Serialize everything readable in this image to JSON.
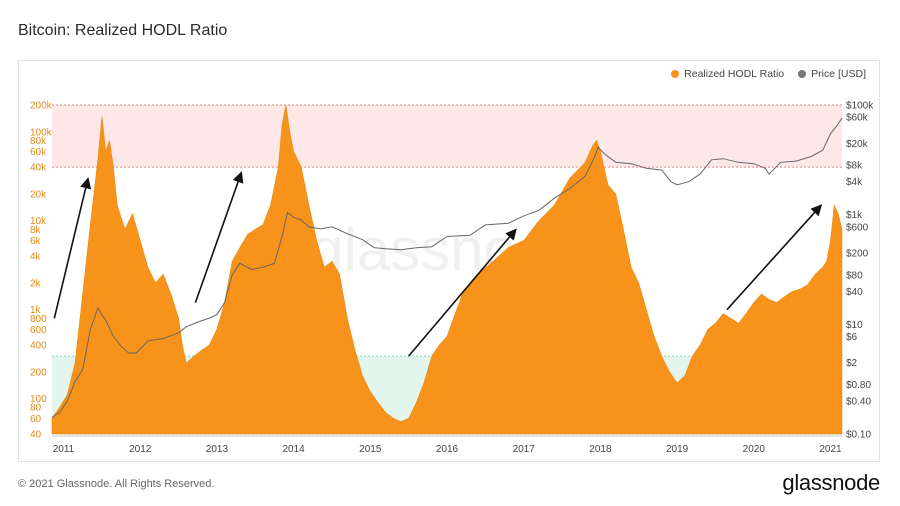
{
  "title": "Bitcoin: Realized HODL Ratio",
  "footer": "© 2021 Glassnode. All Rights Reserved.",
  "brand": "glassnode",
  "watermark": "glassnode",
  "chart_data": {
    "type": "area",
    "legend_placement": "top-right",
    "grid": false,
    "series": [
      {
        "name": "Realized HODL Ratio",
        "kind": "area",
        "axis": "left",
        "color": "#f7931a",
        "x": [
          2010.85,
          2010.95,
          2011.05,
          2011.15,
          2011.25,
          2011.35,
          2011.45,
          2011.5,
          2011.55,
          2011.6,
          2011.65,
          2011.7,
          2011.8,
          2011.9,
          2012.0,
          2012.1,
          2012.2,
          2012.3,
          2012.4,
          2012.5,
          2012.55,
          2012.6,
          2012.7,
          2012.8,
          2012.9,
          2013.0,
          2013.1,
          2013.2,
          2013.3,
          2013.4,
          2013.5,
          2013.6,
          2013.7,
          2013.8,
          2013.85,
          2013.9,
          2013.95,
          2014.0,
          2014.1,
          2014.2,
          2014.3,
          2014.4,
          2014.5,
          2014.6,
          2014.7,
          2014.8,
          2014.9,
          2015.0,
          2015.1,
          2015.2,
          2015.3,
          2015.4,
          2015.5,
          2015.6,
          2015.7,
          2015.8,
          2015.9,
          2016.0,
          2016.2,
          2016.4,
          2016.6,
          2016.8,
          2017.0,
          2017.2,
          2017.4,
          2017.6,
          2017.8,
          2017.9,
          2017.95,
          2018.0,
          2018.1,
          2018.2,
          2018.3,
          2018.4,
          2018.5,
          2018.6,
          2018.7,
          2018.8,
          2018.9,
          2019.0,
          2019.1,
          2019.2,
          2019.3,
          2019.4,
          2019.5,
          2019.6,
          2019.7,
          2019.8,
          2019.9,
          2020.0,
          2020.1,
          2020.2,
          2020.3,
          2020.4,
          2020.5,
          2020.6,
          2020.7,
          2020.8,
          2020.9,
          2020.95,
          2021.0,
          2021.05,
          2021.1,
          2021.15
        ],
        "values": [
          60,
          80,
          110,
          250,
          1500,
          9000,
          50000,
          150000,
          60000,
          80000,
          40000,
          15000,
          8000,
          12000,
          6000,
          3000,
          2000,
          2500,
          1500,
          800,
          400,
          250,
          300,
          350,
          400,
          600,
          1200,
          3500,
          5000,
          7000,
          8000,
          9000,
          15000,
          40000,
          120000,
          200000,
          100000,
          60000,
          40000,
          15000,
          6000,
          3000,
          3500,
          2500,
          800,
          350,
          180,
          120,
          90,
          70,
          60,
          55,
          60,
          90,
          150,
          300,
          400,
          500,
          1500,
          2500,
          3500,
          5000,
          6000,
          10000,
          15000,
          30000,
          45000,
          70000,
          80000,
          60000,
          25000,
          20000,
          8000,
          3000,
          2000,
          1000,
          500,
          300,
          200,
          150,
          180,
          300,
          400,
          600,
          700,
          900,
          800,
          700,
          900,
          1200,
          1500,
          1300,
          1200,
          1400,
          1600,
          1700,
          1900,
          2500,
          3000,
          3500,
          6000,
          15000,
          12000,
          8000
        ]
      },
      {
        "name": "Price [USD]",
        "kind": "line",
        "axis": "right",
        "color": "#666666",
        "x": [
          2010.85,
          2010.95,
          2011.05,
          2011.15,
          2011.25,
          2011.35,
          2011.45,
          2011.5,
          2011.55,
          2011.65,
          2011.75,
          2011.85,
          2011.95,
          2012.1,
          2012.3,
          2012.5,
          2012.6,
          2012.75,
          2012.9,
          2013.0,
          2013.1,
          2013.2,
          2013.3,
          2013.45,
          2013.6,
          2013.75,
          2013.85,
          2013.92,
          2014.0,
          2014.1,
          2014.2,
          2014.35,
          2014.5,
          2014.7,
          2014.9,
          2015.05,
          2015.2,
          2015.4,
          2015.6,
          2015.8,
          2016.0,
          2016.3,
          2016.5,
          2016.8,
          2017.0,
          2017.2,
          2017.4,
          2017.6,
          2017.8,
          2017.92,
          2017.97,
          2018.05,
          2018.2,
          2018.4,
          2018.6,
          2018.8,
          2018.92,
          2019.0,
          2019.15,
          2019.3,
          2019.45,
          2019.6,
          2019.8,
          2020.0,
          2020.15,
          2020.2,
          2020.35,
          2020.55,
          2020.75,
          2020.9,
          2021.0,
          2021.1,
          2021.15
        ],
        "values": [
          0.2,
          0.25,
          0.4,
          0.9,
          1.5,
          8,
          20,
          15,
          12,
          6,
          4,
          3,
          3,
          5,
          5.5,
          7,
          9,
          11,
          13,
          15,
          25,
          80,
          130,
          100,
          110,
          130,
          400,
          1100,
          900,
          800,
          600,
          550,
          600,
          450,
          350,
          250,
          240,
          230,
          250,
          260,
          400,
          420,
          650,
          700,
          950,
          1200,
          2000,
          3000,
          5000,
          11000,
          17000,
          13000,
          9000,
          8500,
          7000,
          6500,
          4000,
          3500,
          4000,
          5500,
          10000,
          10500,
          9000,
          8500,
          7000,
          5500,
          9000,
          9500,
          11500,
          15000,
          30000,
          45000,
          58000
        ]
      }
    ],
    "y_left": {
      "scale": "log",
      "range": [
        40,
        200000
      ],
      "ticks": [
        {
          "v": 200000,
          "l": "200k"
        },
        {
          "v": 100000,
          "l": "100k"
        },
        {
          "v": 80000,
          "l": "80k"
        },
        {
          "v": 60000,
          "l": "60k"
        },
        {
          "v": 40000,
          "l": "40k"
        },
        {
          "v": 20000,
          "l": "20k"
        },
        {
          "v": 10000,
          "l": "10k"
        },
        {
          "v": 8000,
          "l": "8k"
        },
        {
          "v": 6000,
          "l": "6k"
        },
        {
          "v": 4000,
          "l": "4k"
        },
        {
          "v": 2000,
          "l": "2k"
        },
        {
          "v": 1000,
          "l": "1k"
        },
        {
          "v": 800,
          "l": "800"
        },
        {
          "v": 600,
          "l": "600"
        },
        {
          "v": 400,
          "l": "400"
        },
        {
          "v": 200,
          "l": "200"
        },
        {
          "v": 100,
          "l": "100"
        },
        {
          "v": 80,
          "l": "80"
        },
        {
          "v": 60,
          "l": "60"
        },
        {
          "v": 40,
          "l": "40"
        }
      ]
    },
    "y_right": {
      "scale": "log",
      "range": [
        0.1,
        100000
      ],
      "ticks": [
        {
          "v": 100000,
          "l": "$100k"
        },
        {
          "v": 60000,
          "l": "$60k"
        },
        {
          "v": 20000,
          "l": "$20k"
        },
        {
          "v": 8000,
          "l": "$8k"
        },
        {
          "v": 4000,
          "l": "$4k"
        },
        {
          "v": 1000,
          "l": "$1k"
        },
        {
          "v": 600,
          "l": "$600"
        },
        {
          "v": 200,
          "l": "$200"
        },
        {
          "v": 80,
          "l": "$80"
        },
        {
          "v": 40,
          "l": "$40"
        },
        {
          "v": 10,
          "l": "$10"
        },
        {
          "v": 6,
          "l": "$6"
        },
        {
          "v": 2,
          "l": "$2"
        },
        {
          "v": 0.8,
          "l": "$0.80"
        },
        {
          "v": 0.4,
          "l": "$0.40"
        },
        {
          "v": 0.1,
          "l": "$0.10"
        }
      ]
    },
    "x_axis": {
      "range": [
        2010.85,
        2021.15
      ],
      "ticks": [
        {
          "v": 2011,
          "l": "2011"
        },
        {
          "v": 2012,
          "l": "2012"
        },
        {
          "v": 2013,
          "l": "2013"
        },
        {
          "v": 2014,
          "l": "2014"
        },
        {
          "v": 2015,
          "l": "2015"
        },
        {
          "v": 2016,
          "l": "2016"
        },
        {
          "v": 2017,
          "l": "2017"
        },
        {
          "v": 2018,
          "l": "2018"
        },
        {
          "v": 2019,
          "l": "2019"
        },
        {
          "v": 2020,
          "l": "2020"
        },
        {
          "v": 2021,
          "l": "2021"
        }
      ]
    },
    "bands": [
      {
        "from": 40000,
        "to": 200000,
        "color": "#fde7e7",
        "edge": "#f08080"
      },
      {
        "from": 40,
        "to": 300,
        "color": "#e3f6ee",
        "edge": "#7fd3ae"
      }
    ],
    "arrows": [
      {
        "from": [
          2010.88,
          800
        ],
        "to": [
          2011.32,
          30000
        ]
      },
      {
        "from": [
          2012.72,
          1200
        ],
        "to": [
          2013.32,
          35000
        ]
      },
      {
        "from": [
          2015.5,
          300
        ],
        "to": [
          2016.9,
          8000
        ]
      },
      {
        "from": [
          2019.65,
          1000
        ],
        "to": [
          2020.88,
          15000
        ]
      }
    ]
  }
}
